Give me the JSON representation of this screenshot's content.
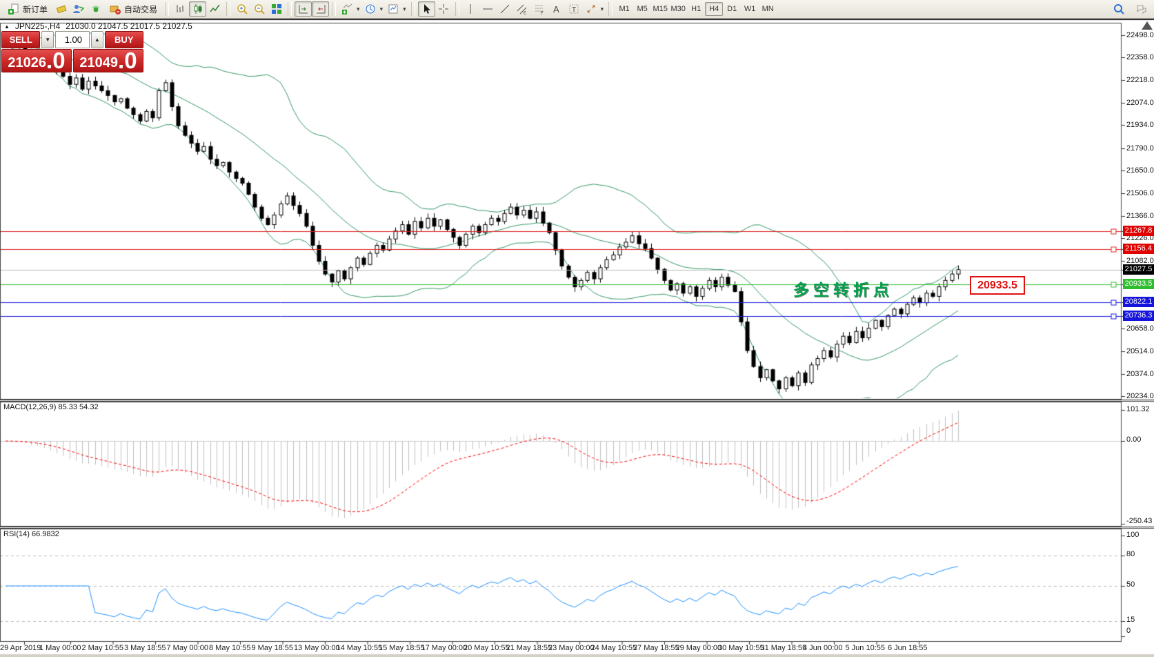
{
  "toolbar": {
    "new_order_label": "新订单",
    "auto_trading_label": "自动交易",
    "timeframes": [
      "M1",
      "M5",
      "M15",
      "M30",
      "H1",
      "H4",
      "D1",
      "W1",
      "MN"
    ],
    "active_timeframe": "H4"
  },
  "chart_header": {
    "symbol": "JPN225-,H4",
    "ohlc": "21030.0 21047.5 21017.5 21027.5"
  },
  "trade_panel": {
    "sell_label": "SELL",
    "buy_label": "BUY",
    "volume": "1.00",
    "sell_price": "21026",
    "sell_frac": ".0",
    "buy_price": "21049",
    "buy_frac": ".0"
  },
  "annotations": {
    "turning_point": "多空转折点",
    "price_box": "20933.5"
  },
  "pane_labels": {
    "macd": "MACD(12,26,9) 85.33 54.32",
    "rsi": "RSI(14) 66.9832"
  },
  "chart_data": {
    "type": "candlestick",
    "symbol": "JPN225-",
    "timeframe": "H4",
    "last_bar": {
      "open": 21030.0,
      "high": 21047.5,
      "low": 21017.5,
      "close": 21027.5
    },
    "closes": [
      22460,
      22430,
      22445,
      22400,
      22370,
      22390,
      22340,
      22300,
      22270,
      22240,
      22190,
      22230,
      22160,
      22210,
      22180,
      22150,
      22120,
      22080,
      22100,
      22040,
      22000,
      21960,
      22020,
      21980,
      22150,
      22200,
      22050,
      21930,
      21870,
      21820,
      21770,
      21800,
      21720,
      21680,
      21700,
      21640,
      21600,
      21570,
      21500,
      21420,
      21350,
      21310,
      21370,
      21440,
      21490,
      21430,
      21380,
      21300,
      21180,
      21080,
      21000,
      20950,
      21020,
      20970,
      21040,
      21100,
      21060,
      21130,
      21180,
      21150,
      21220,
      21270,
      21310,
      21250,
      21330,
      21290,
      21350,
      21300,
      21340,
      21280,
      21230,
      21180,
      21250,
      21300,
      21260,
      21310,
      21350,
      21330,
      21380,
      21420,
      21370,
      21400,
      21350,
      21390,
      21320,
      21260,
      21150,
      21050,
      20980,
      20920,
      20960,
      21010,
      20970,
      21040,
      21090,
      21120,
      21170,
      21200,
      21240,
      21190,
      21160,
      21100,
      21030,
      20960,
      20900,
      20940,
      20880,
      20920,
      20860,
      20910,
      20960,
      20920,
      20980,
      20930,
      20890,
      20700,
      20520,
      20420,
      20350,
      20400,
      20330,
      20280,
      20350,
      20300,
      20380,
      20320,
      20430,
      20470,
      20520,
      20480,
      20560,
      20610,
      20570,
      20640,
      20600,
      20660,
      20710,
      20670,
      20740,
      20780,
      20750,
      20810,
      20850,
      20820,
      20880,
      20860,
      20920,
      20960,
      21000,
      21027.5
    ],
    "candle_up_color": "#ffffff",
    "candle_down_color": "#000000",
    "wick_color": "#000000",
    "price_axis_ticks": [
      22498,
      22358,
      22218,
      22074,
      21934,
      21790,
      21650,
      21506,
      21366,
      21226,
      21082,
      20658,
      20514,
      20374,
      20234
    ],
    "horizontal_lines": [
      {
        "label": "21267.8",
        "price": 21267.8,
        "color": "#e02020",
        "label_bg": "#e00000",
        "handle": true
      },
      {
        "label": "21156.4",
        "price": 21156.4,
        "color": "#e02020",
        "label_bg": "#e00000",
        "handle": true
      },
      {
        "label": "21027.5",
        "price": 21027.5,
        "color": "#b9b9b9",
        "label_bg": "#000000",
        "handle": false
      },
      {
        "label": "20933.5",
        "price": 20933.5,
        "color": "#2fbe2f",
        "label_bg": "#2fbe2f",
        "handle": true
      },
      {
        "label": "20822.1",
        "price": 20822.1,
        "color": "#1414dd",
        "label_bg": "#1414dd",
        "handle": true
      },
      {
        "label": "20736.3",
        "price": 20736.3,
        "color": "#1414dd",
        "label_bg": "#1414dd",
        "handle": true
      }
    ],
    "indicators": {
      "bollinger": {
        "period": 20,
        "deviation": 2,
        "color": "#339966"
      },
      "macd": {
        "fast": 12,
        "slow": 26,
        "signal": 9,
        "histogram_color": "#c0c0c0",
        "signal_color": "#ff0000",
        "current_main": 85.33,
        "current_signal": 54.32,
        "axis_labels": [
          "101.32",
          "0.00",
          "-250.43"
        ]
      },
      "rsi": {
        "period": 14,
        "color": "#1e90ff",
        "current": 66.9832,
        "levels": [
          80,
          50,
          15
        ],
        "axis_labels": [
          "100",
          "80",
          "50",
          "15",
          "0"
        ]
      }
    },
    "time_labels": [
      "29 Apr 2019",
      "1 May 00:00",
      "2 May 10:55",
      "3 May 18:55",
      "7 May 00:00",
      "8 May 10:55",
      "9 May 18:55",
      "13 May 00:00",
      "14 May 10:55",
      "15 May 18:55",
      "17 May 00:00",
      "20 May 10:55",
      "21 May 18:55",
      "23 May 00:00",
      "24 May 10:55",
      "27 May 18:55",
      "29 May 00:00",
      "30 May 10:55",
      "31 May 18:55",
      "4 Jun 00:00",
      "5 Jun 10:55",
      "6 Jun 18:55"
    ]
  }
}
